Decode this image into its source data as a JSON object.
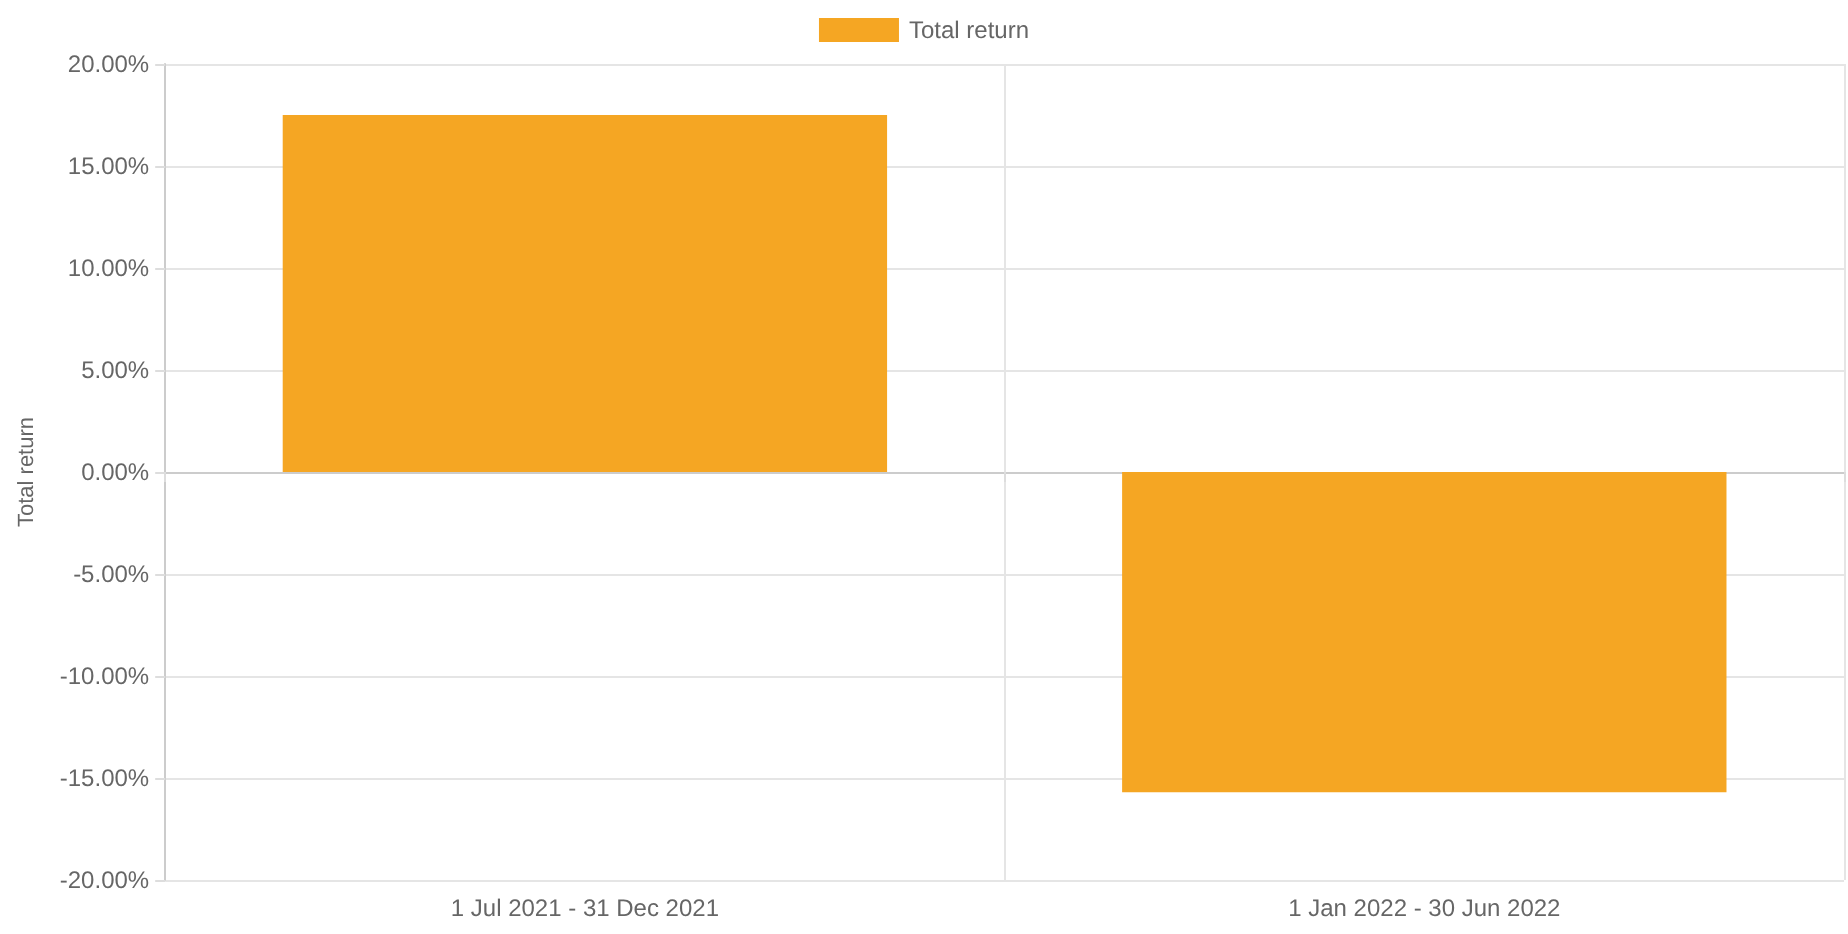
{
  "chart_data": {
    "type": "bar",
    "ylabel": "Total return",
    "categories": [
      "1 Jul 2021 - 31 Dec 2021",
      "1 Jan 2022 - 30 Jun 2022"
    ],
    "series": [
      {
        "name": "Total return",
        "color": "#f5a623",
        "values": [
          17.5,
          -15.7
        ]
      }
    ],
    "ylim": [
      -20,
      20
    ],
    "yticks": [
      {
        "value": -20,
        "label": "-20.00%"
      },
      {
        "value": -15,
        "label": "-15.00%"
      },
      {
        "value": -10,
        "label": "-10.00%"
      },
      {
        "value": -5,
        "label": "-5.00%"
      },
      {
        "value": 0,
        "label": "0.00%"
      },
      {
        "value": 5,
        "label": "5.00%"
      },
      {
        "value": 10,
        "label": "10.00%"
      },
      {
        "value": 15,
        "label": "15.00%"
      },
      {
        "value": 20,
        "label": "20.00%"
      }
    ],
    "grid": true,
    "legend": "top"
  }
}
